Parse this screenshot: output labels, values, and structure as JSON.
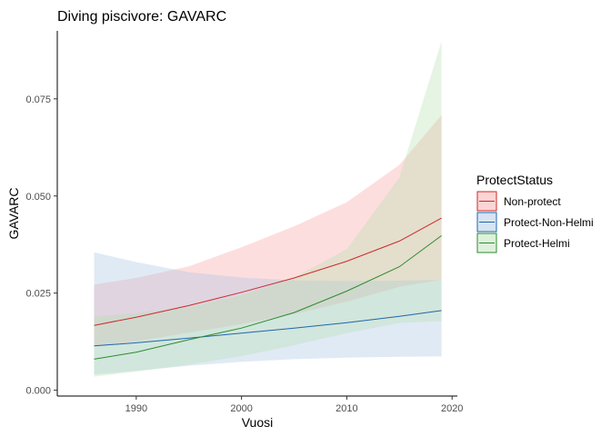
{
  "chart_data": {
    "type": "line",
    "title": "Diving piscivore: GAVARC",
    "xlabel": "Vuosi",
    "ylabel": "GAVARC",
    "xlim": [
      1982.5,
      2020.5
    ],
    "ylim": [
      -0.0015,
      0.0925
    ],
    "x_ticks": [
      1990,
      2000,
      2010,
      2020
    ],
    "y_ticks": [
      0.0,
      0.025,
      0.05,
      0.075
    ],
    "y_tick_labels": [
      "0.000",
      "0.025",
      "0.050",
      "0.075"
    ],
    "grid": false,
    "legend": {
      "title": "ProtectStatus",
      "position": "right"
    },
    "x": [
      1986,
      1990,
      1995,
      2000,
      2005,
      2010,
      2015,
      2019
    ],
    "series": [
      {
        "name": "Non-protect",
        "color": "#cc2a2a",
        "fill": "#f8a0a0",
        "values": [
          0.0167,
          0.0188,
          0.0218,
          0.0252,
          0.0289,
          0.0332,
          0.0384,
          0.0443
        ],
        "lower": [
          0.0112,
          0.0126,
          0.0148,
          0.017,
          0.0196,
          0.0228,
          0.0266,
          0.0285
        ],
        "upper": [
          0.0272,
          0.0289,
          0.0319,
          0.0368,
          0.0422,
          0.0484,
          0.058,
          0.0708
        ]
      },
      {
        "name": "Protect-Non-Helmi",
        "color": "#2166ac",
        "fill": "#a7c4e2",
        "values": [
          0.0114,
          0.0122,
          0.0134,
          0.0147,
          0.016,
          0.0174,
          0.019,
          0.0205
        ],
        "lower": [
          0.004,
          0.005,
          0.0063,
          0.0073,
          0.008,
          0.0084,
          0.0086,
          0.0087
        ],
        "upper": [
          0.0355,
          0.033,
          0.0304,
          0.029,
          0.0283,
          0.0281,
          0.0282,
          0.0284
        ]
      },
      {
        "name": "Protect-Helmi",
        "color": "#2e8b2e",
        "fill": "#b5e0b0",
        "values": [
          0.008,
          0.0098,
          0.013,
          0.016,
          0.02,
          0.0255,
          0.0318,
          0.0398
        ],
        "lower": [
          0.0035,
          0.0048,
          0.0066,
          0.0088,
          0.0116,
          0.0147,
          0.0173,
          0.0178
        ],
        "upper": [
          0.019,
          0.0198,
          0.0214,
          0.0244,
          0.029,
          0.0363,
          0.0548,
          0.0898
        ]
      }
    ]
  }
}
